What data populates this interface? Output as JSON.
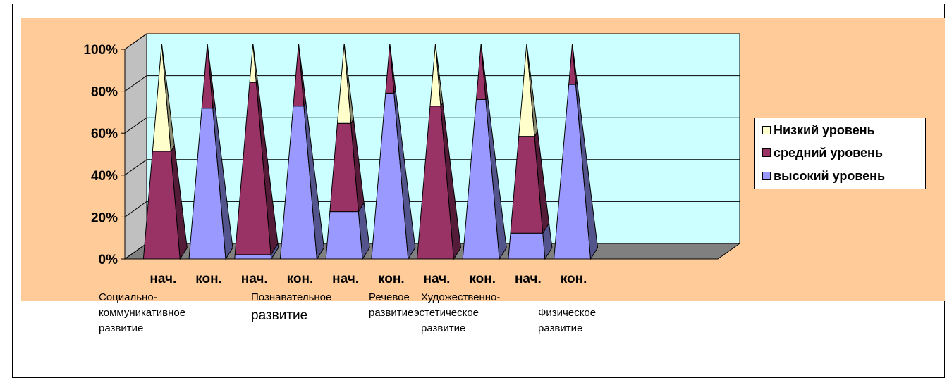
{
  "chart_data": {
    "type": "bar",
    "style": "3d-stacked-100-percent-pyramid",
    "categories": [
      "нач.",
      "кон.",
      "нач.",
      "кон.",
      "нач.",
      "кон.",
      "нач.",
      "кон.",
      "нач.",
      "кон."
    ],
    "groups": [
      {
        "label_lines": [
          "Социально-",
          "коммуникативное",
          "развитие"
        ]
      },
      {
        "label_lines": [
          "Познавательное",
          "развитие"
        ]
      },
      {
        "label_lines": [
          "Речевое",
          "развитие"
        ]
      },
      {
        "label_lines": [
          "Художественно-",
          "эстетическое",
          "развитие"
        ]
      },
      {
        "label_lines": [
          "Физическое",
          "развитие"
        ]
      }
    ],
    "series": [
      {
        "name": "высокий уровень",
        "color": "#9999ff",
        "values": [
          0,
          70,
          2,
          71,
          22,
          77,
          0,
          74,
          12,
          81
        ]
      },
      {
        "name": "средний уровень",
        "color": "#993366",
        "values": [
          50,
          30,
          80,
          29,
          41,
          23,
          71,
          26,
          45,
          19
        ]
      },
      {
        "name": "Низкий уровень",
        "color": "#ffffcc",
        "values": [
          50,
          0,
          18,
          0,
          37,
          0,
          29,
          0,
          43,
          0
        ]
      }
    ],
    "yticks": [
      "0%",
      "20%",
      "40%",
      "60%",
      "80%",
      "100%"
    ],
    "ylim": [
      0,
      100
    ],
    "grid": true,
    "legend_position": "right",
    "colors": {
      "chart_area": "#ffcc99",
      "back_wall": "#ccffff",
      "floor": "#808080",
      "side_wall": "#c0c0c0"
    }
  }
}
